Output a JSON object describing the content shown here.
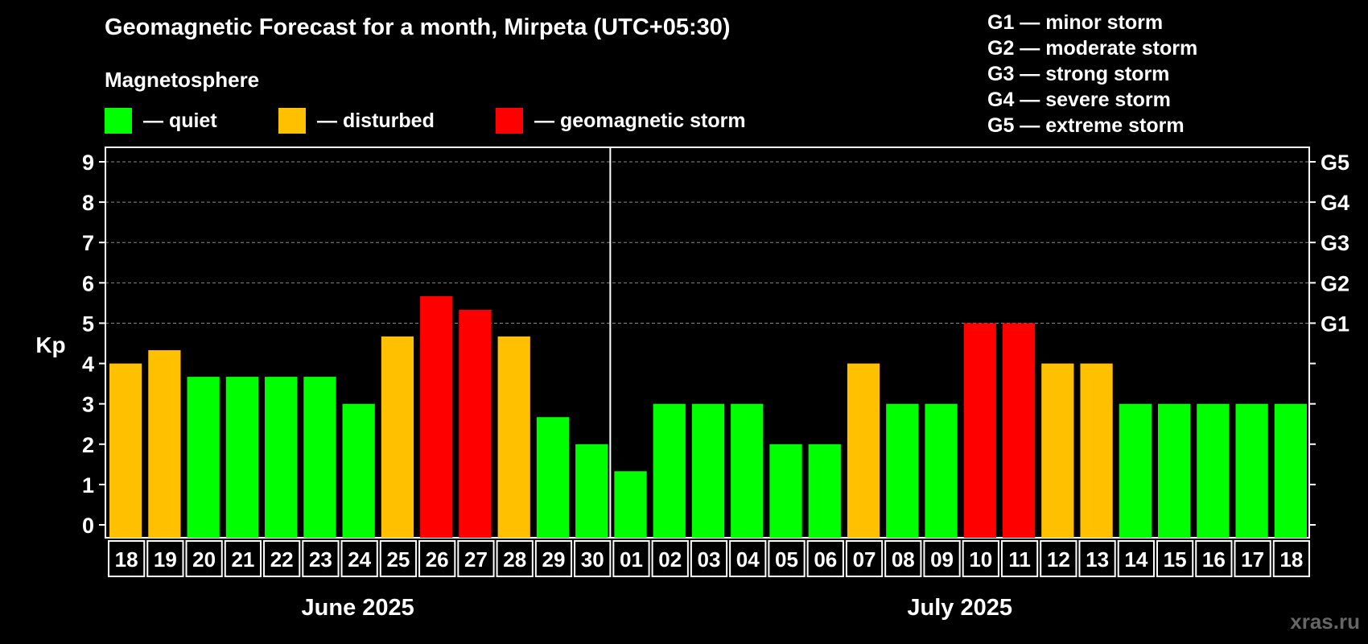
{
  "title": "Geomagnetic Forecast for a month, Mirpeta (UTC+05:30)",
  "subtitle": "Magnetosphere",
  "legend": {
    "quiet": "— quiet",
    "disturbed": "— disturbed",
    "storm": "— geomagnetic storm"
  },
  "g_scale": [
    "G1 — minor storm",
    "G2 — moderate storm",
    "G3 — strong storm",
    "G4 — severe storm",
    "G5 — extreme storm"
  ],
  "watermark": "xras.ru",
  "colors": {
    "quiet": "#00ff00",
    "disturbed": "#ffc000",
    "storm": "#ff0000"
  },
  "chart_data": {
    "type": "bar",
    "ylabel": "Kp",
    "ylim": [
      0,
      9
    ],
    "yticks": [
      "0",
      "1",
      "2",
      "3",
      "4",
      "5",
      "6",
      "7",
      "8",
      "9"
    ],
    "right_ticks": [
      {
        "kp": 5,
        "label": "G1"
      },
      {
        "kp": 6,
        "label": "G2"
      },
      {
        "kp": 7,
        "label": "G3"
      },
      {
        "kp": 8,
        "label": "G4"
      },
      {
        "kp": 9,
        "label": "G5"
      }
    ],
    "months": [
      {
        "label": "June 2025",
        "start": 0,
        "end": 12
      },
      {
        "label": "July 2025",
        "start": 13,
        "end": 30
      }
    ],
    "categories": [
      "18",
      "19",
      "20",
      "21",
      "22",
      "23",
      "24",
      "25",
      "26",
      "27",
      "28",
      "29",
      "30",
      "01",
      "02",
      "03",
      "04",
      "05",
      "06",
      "07",
      "08",
      "09",
      "10",
      "11",
      "12",
      "13",
      "14",
      "15",
      "16",
      "17",
      "18"
    ],
    "values": [
      4.0,
      4.33,
      3.67,
      3.67,
      3.67,
      3.67,
      3.0,
      4.67,
      5.67,
      5.33,
      4.67,
      2.67,
      2.0,
      1.33,
      3.0,
      3.0,
      3.0,
      2.0,
      2.0,
      4.0,
      3.0,
      3.0,
      5.0,
      5.0,
      4.0,
      4.0,
      3.0,
      3.0,
      3.0,
      3.0,
      3.0
    ],
    "status": [
      "disturbed",
      "disturbed",
      "quiet",
      "quiet",
      "quiet",
      "quiet",
      "quiet",
      "disturbed",
      "storm",
      "storm",
      "disturbed",
      "quiet",
      "quiet",
      "quiet",
      "quiet",
      "quiet",
      "quiet",
      "quiet",
      "quiet",
      "disturbed",
      "quiet",
      "quiet",
      "storm",
      "storm",
      "disturbed",
      "disturbed",
      "quiet",
      "quiet",
      "quiet",
      "quiet",
      "quiet"
    ]
  }
}
